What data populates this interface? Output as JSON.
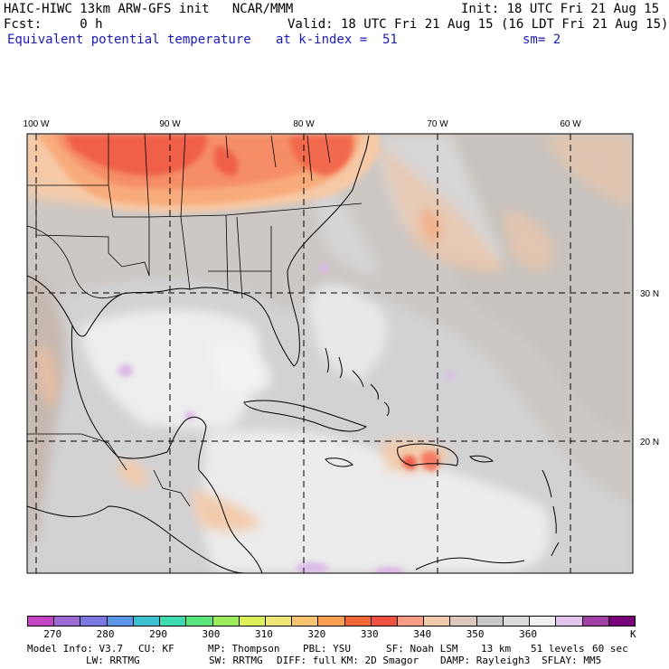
{
  "header": {
    "line1_left": "HAIC-HIWC 13km ARW-GFS init   NCAR/MMM",
    "line1_right": "Init: 18 UTC Fri 21 Aug 15",
    "line2_left": "Fcst:     0 h",
    "line2_right": "Valid: 18 UTC Fri 21 Aug 15 (16 LDT Fri 21 Aug 15)",
    "field": "Equivalent potential temperature",
    "level": "at k-index =  51",
    "smooth": "sm= 2"
  },
  "map": {
    "lon_labels": [
      "100 W",
      "90 W",
      "80 W",
      "70 W",
      "60 W"
    ],
    "lat_labels": [
      "30 N",
      "20 N"
    ],
    "colors": {
      "background_gray": "#cdc8c4",
      "light_gray": "#dcdcdc",
      "white_ish": "#eeeeee",
      "peach": "#f2cbab",
      "orange_light": "#f9b282",
      "orange": "#f8936b",
      "red": "#f45748",
      "lavender": "#d8b6e6"
    }
  },
  "colorbar": {
    "colors": [
      "#c445c4",
      "#9b6ad2",
      "#7b78e2",
      "#5a96e8",
      "#3cc0d2",
      "#3cdcb0",
      "#5ae67a",
      "#9aec5a",
      "#dcf05a",
      "#f0e678",
      "#f8c470",
      "#f8a050",
      "#f06838",
      "#f05040",
      "#f89c84",
      "#f2cbab",
      "#dcc8bc",
      "#c8c8c8",
      "#dcdcdc",
      "#f0f0f0",
      "#e2c4ec",
      "#a040a4",
      "#780078"
    ],
    "labels": [
      "270",
      "280",
      "290",
      "300",
      "310",
      "320",
      "330",
      "340",
      "350",
      "360"
    ],
    "unit": "K"
  },
  "footer": {
    "row1": [
      "Model Info: V3.7",
      "CU: KF",
      "MP: Thompson",
      "PBL: YSU",
      "SF: Noah LSM",
      "13 km",
      "51 levels",
      "60 sec"
    ],
    "row2": [
      "LW: RRTMG",
      "SW: RRTMG",
      "DIFF: full",
      "KM: 2D Smagor",
      "DAMP: Rayleigh3",
      "SFLAY: MM5"
    ]
  }
}
